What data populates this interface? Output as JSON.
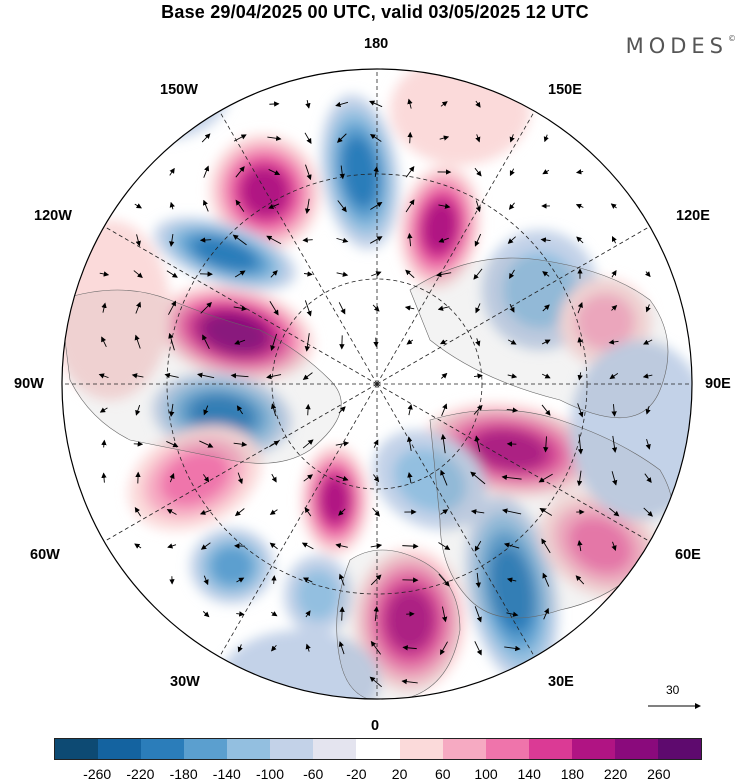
{
  "title": "Base 29/04/2025 00 UTC, valid 03/05/2025 12 UTC",
  "brand": "MODES",
  "brand_mark": "©",
  "longitude_labels": {
    "top": "180",
    "bottom": "0",
    "left": "90W",
    "right": "90E",
    "upper_left_outer": "150W",
    "upper_left_inner": "120W",
    "lower_left_inner": "60W",
    "lower_left_outer": "30W",
    "upper_right_outer": "150E",
    "upper_right_inner": "120E",
    "lower_right_inner": "60E",
    "lower_right_outer": "30E"
  },
  "vector_scale": "30",
  "colorbar": {
    "ticks": [
      "-260",
      "-220",
      "-180",
      "-140",
      "-100",
      "-60",
      "-20",
      "20",
      "60",
      "100",
      "140",
      "180",
      "220",
      "260"
    ],
    "colors": [
      "#0d4a73",
      "#1463a0",
      "#2b7dba",
      "#5b9fcf",
      "#93bfe0",
      "#c3d2e8",
      "#e4e4ef",
      "#ffffff",
      "#fbdada",
      "#f6aac2",
      "#ef74ab",
      "#db3a95",
      "#b01483",
      "#8a0a7c",
      "#5e0a6e"
    ]
  },
  "palette": {
    "neg_strong": "#2b7dba",
    "neg_mid": "#5b9fcf",
    "neg_light": "#93bfe0",
    "neg_faint": "#c3d2e8",
    "pos_faint": "#fbdada",
    "pos_light": "#f6aac2",
    "pos_mid": "#ef74ab",
    "pos_strong": "#db3a95",
    "pos_deep": "#b01483",
    "pos_max": "#8a0a7c"
  }
}
